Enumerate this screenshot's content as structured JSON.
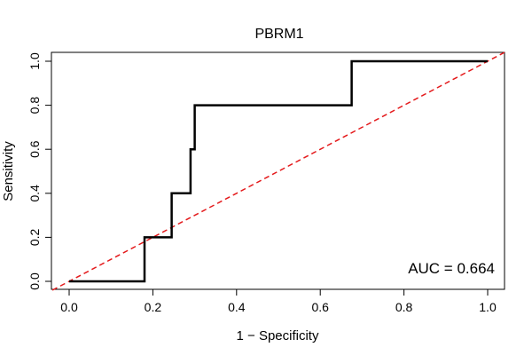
{
  "chart_data": {
    "type": "line",
    "title": "PBRM1",
    "xlabel": "1 − Specificity",
    "ylabel": "Sensitivity",
    "xlim": [
      0,
      1
    ],
    "ylim": [
      0,
      1
    ],
    "x_ticks": [
      "0.0",
      "0.2",
      "0.4",
      "0.6",
      "0.8",
      "1.0"
    ],
    "y_ticks": [
      "0.0",
      "0.2",
      "0.4",
      "0.6",
      "0.8",
      "1.0"
    ],
    "grid": false,
    "series": [
      {
        "color": "#000000",
        "x": [
          0.0,
          0.18,
          0.18,
          0.245,
          0.245,
          0.29,
          0.29,
          0.3,
          0.3,
          0.675,
          0.675,
          1.0
        ],
        "y": [
          0.0,
          0.0,
          0.2,
          0.2,
          0.4,
          0.4,
          0.6,
          0.6,
          0.8,
          0.8,
          1.0,
          1.0
        ]
      }
    ],
    "reference_line": {
      "x": [
        0,
        1
      ],
      "y": [
        0,
        1
      ],
      "color": "#e41a1c",
      "style": "dashed"
    },
    "annotation": "AUC = 0.664"
  }
}
